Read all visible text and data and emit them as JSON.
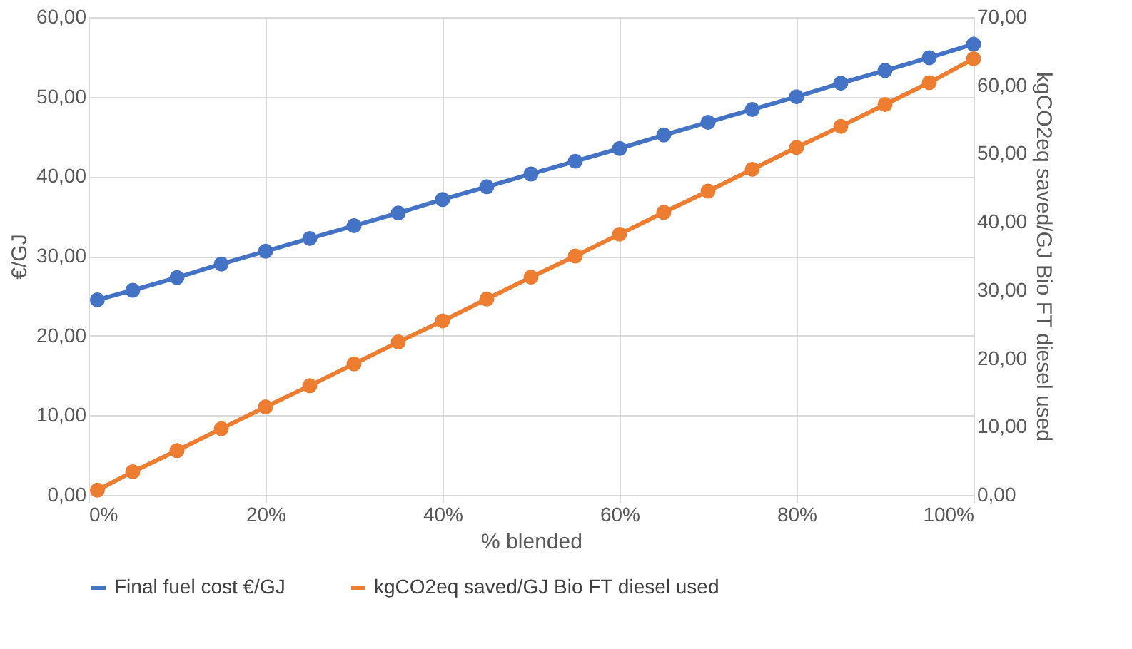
{
  "chart_data": {
    "type": "line",
    "xlabel": "% blended",
    "ylabel": "€/GJ",
    "y2label": "kgCO2eq saved/GJ Bio FT diesel used",
    "x": [
      1,
      5,
      10,
      15,
      20,
      25,
      30,
      35,
      40,
      45,
      50,
      55,
      60,
      65,
      70,
      75,
      80,
      85,
      90,
      95,
      100
    ],
    "series": [
      {
        "name": "Final fuel cost €/GJ",
        "color": "#4472c4",
        "values": [
          24.5,
          25.7,
          27.3,
          29.0,
          30.6,
          32.2,
          33.8,
          35.4,
          37.1,
          38.7,
          40.3,
          41.9,
          43.5,
          45.2,
          46.8,
          48.4,
          50.0,
          51.7,
          53.3,
          54.9,
          56.6
        ]
      },
      {
        "name": "kgCO2eq saved/GJ Bio FT diesel used",
        "color": "#ed7d31",
        "axis": "y2",
        "values": [
          0.7,
          3.4,
          6.5,
          9.7,
          12.9,
          16.0,
          19.2,
          22.4,
          25.5,
          28.7,
          31.9,
          35.0,
          38.2,
          41.4,
          44.5,
          47.7,
          50.9,
          54.0,
          57.2,
          60.4,
          63.9
        ]
      }
    ],
    "xlim": [
      0,
      100
    ],
    "xticks": [
      {
        "value": 0,
        "label": "0%"
      },
      {
        "value": 20,
        "label": "20%"
      },
      {
        "value": 40,
        "label": "40%"
      },
      {
        "value": 60,
        "label": "60%"
      },
      {
        "value": 80,
        "label": "80%"
      },
      {
        "value": 100,
        "label": "100%"
      }
    ],
    "ylim": [
      0,
      60
    ],
    "yticks": [
      {
        "value": 0,
        "label": "0,00"
      },
      {
        "value": 10,
        "label": "10,00"
      },
      {
        "value": 20,
        "label": "20,00"
      },
      {
        "value": 30,
        "label": "30,00"
      },
      {
        "value": 40,
        "label": "40,00"
      },
      {
        "value": 50,
        "label": "50,00"
      },
      {
        "value": 60,
        "label": "60,00"
      }
    ],
    "y2lim": [
      0,
      70
    ],
    "y2ticks": [
      {
        "value": 0,
        "label": "0,00"
      },
      {
        "value": 10,
        "label": "10,00"
      },
      {
        "value": 20,
        "label": "20,00"
      },
      {
        "value": 30,
        "label": "30,00"
      },
      {
        "value": 40,
        "label": "40,00"
      },
      {
        "value": 50,
        "label": "50,00"
      },
      {
        "value": 60,
        "label": "60,00"
      },
      {
        "value": 70,
        "label": "70,00"
      }
    ],
    "grid": true,
    "legend": "bottom",
    "marker": "circle",
    "line_style": "solid"
  }
}
